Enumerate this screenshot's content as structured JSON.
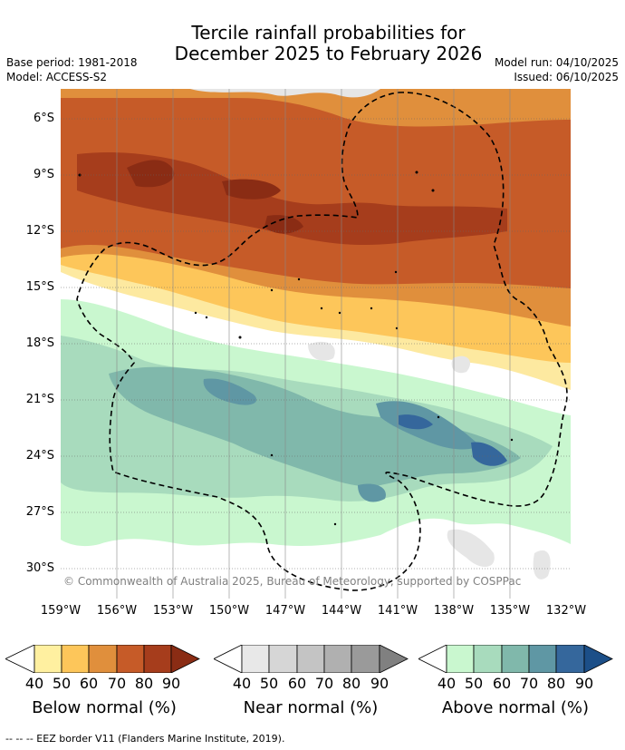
{
  "title": {
    "line1": "Tercile rainfall probabilities for",
    "line2": "December 2025 to February 2026"
  },
  "meta": {
    "base_period": "Base period: 1981-2018",
    "model": "Model: ACCESS-S2",
    "model_run": "Model run: 04/10/2025",
    "issued": "Issued: 06/10/2025"
  },
  "axes": {
    "latitudes": [
      "6°S",
      "9°S",
      "12°S",
      "15°S",
      "18°S",
      "21°S",
      "24°S",
      "27°S",
      "30°S"
    ],
    "longitudes": [
      "159°W",
      "156°W",
      "153°W",
      "150°W",
      "147°W",
      "144°W",
      "141°W",
      "138°W",
      "135°W",
      "132°W"
    ]
  },
  "credit": "© Commonwealth of Australia 2025, Bureau of Meteorology, supported by COSPPac",
  "colorbars": [
    {
      "label": "Below normal (%)",
      "ticks": [
        "40",
        "50",
        "60",
        "70",
        "80",
        "90"
      ],
      "colors": [
        "#fff0a0",
        "#fdc65a",
        "#e08f3c",
        "#c65b28",
        "#a63d1c",
        "#8a2c14"
      ]
    },
    {
      "label": "Near normal (%)",
      "ticks": [
        "40",
        "50",
        "60",
        "70",
        "80",
        "90"
      ],
      "colors": [
        "#e8e8e8",
        "#d6d6d6",
        "#c4c4c4",
        "#b0b0b0",
        "#9a9a9a",
        "#808080"
      ]
    },
    {
      "label": "Above normal (%)",
      "ticks": [
        "40",
        "50",
        "60",
        "70",
        "80",
        "90"
      ],
      "colors": [
        "#c9f7cf",
        "#a8dbbd",
        "#80b8ab",
        "#5f97a4",
        "#35679c",
        "#1c4f88"
      ]
    }
  ],
  "footnote": "--  --  -- EEZ border V11 (Flanders Marine Institute, 2019)."
}
